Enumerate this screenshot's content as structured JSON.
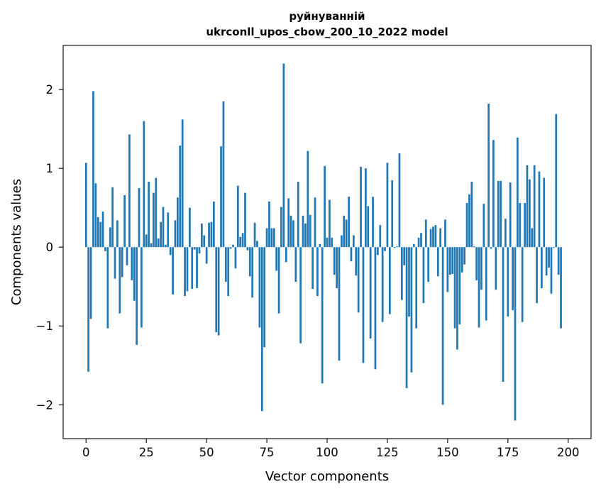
{
  "chart_data": {
    "type": "bar",
    "title": "руйнуванній",
    "subtitle": "ukrconll_upos_cbow_200_10_2022 model",
    "xlabel": "Vector components",
    "ylabel": "Components values",
    "xlim": [
      -9.5,
      209.5
    ],
    "ylim": [
      -2.43,
      2.56
    ],
    "xticks": [
      0,
      25,
      50,
      75,
      100,
      125,
      150,
      175,
      200
    ],
    "yticks": [
      -2,
      -1,
      0,
      1,
      2
    ],
    "ytick_labels": [
      "−2",
      "−1",
      "0",
      "1",
      "2"
    ],
    "bar_color": "#1f77b4",
    "grid": false,
    "values": [
      1.07,
      -1.58,
      -0.91,
      1.98,
      0.81,
      0.38,
      0.32,
      0.45,
      -0.05,
      -1.03,
      0.25,
      0.76,
      -0.4,
      0.34,
      -0.84,
      -0.38,
      0.66,
      -0.23,
      1.43,
      -0.42,
      -0.68,
      -1.24,
      0.75,
      -1.02,
      1.6,
      0.16,
      0.83,
      0.05,
      0.69,
      0.88,
      0.11,
      0.32,
      0.51,
      0.03,
      0.44,
      -0.1,
      -0.6,
      0.34,
      0.63,
      1.29,
      1.62,
      -0.62,
      -0.56,
      0.5,
      -0.53,
      -0.03,
      -0.52,
      -0.08,
      0.3,
      0.15,
      -0.21,
      0.31,
      0.32,
      0.58,
      -1.08,
      -1.12,
      1.28,
      1.85,
      -0.44,
      -0.62,
      -0.02,
      0.03,
      -0.27,
      0.78,
      0.13,
      0.18,
      0.69,
      -0.04,
      -0.37,
      -0.64,
      0.31,
      0.08,
      -1.02,
      -2.08,
      -1.27,
      0.24,
      0.58,
      0.24,
      0.24,
      -0.3,
      -0.84,
      0.51,
      2.33,
      -0.19,
      0.62,
      0.4,
      0.34,
      -0.44,
      0.83,
      -1.22,
      0.4,
      0.3,
      1.22,
      0.41,
      -0.53,
      0.63,
      -0.62,
      0.04,
      -1.73,
      1.03,
      0.12,
      0.6,
      0.12,
      -0.35,
      -0.52,
      -1.44,
      0.15,
      0.4,
      0.35,
      0.64,
      -0.18,
      0.15,
      -0.36,
      -0.83,
      1.02,
      -1.47,
      1.0,
      0.52,
      -1.16,
      0.64,
      -1.55,
      -0.1,
      0.28,
      -0.95,
      -0.05,
      1.07,
      -0.85,
      0.85,
      -0.01,
      0.01,
      1.19,
      -0.67,
      -0.23,
      -1.79,
      -0.88,
      -1.59,
      0.04,
      -1.03,
      0.12,
      0.18,
      -0.71,
      0.35,
      -0.44,
      0.23,
      0.26,
      0.28,
      -0.37,
      0.24,
      -2.0,
      0.35,
      -0.57,
      -0.35,
      -0.34,
      -1.03,
      -1.3,
      -0.98,
      -0.32,
      -0.22,
      0.56,
      0.67,
      0.83,
      0.01,
      -0.42,
      -1.02,
      -0.54,
      0.55,
      -0.93,
      1.82,
      -0.02,
      1.36,
      -0.54,
      0.84,
      0.84,
      -1.71,
      0.36,
      -0.88,
      0.82,
      -0.8,
      -2.2,
      1.39,
      0.56,
      -0.95,
      0.56,
      1.04,
      0.86,
      0.24,
      1.04,
      -0.71,
      0.96,
      -0.52,
      0.88,
      -0.36,
      -0.26,
      -0.59,
      -0.01,
      1.69,
      -0.35,
      -1.03
    ]
  }
}
